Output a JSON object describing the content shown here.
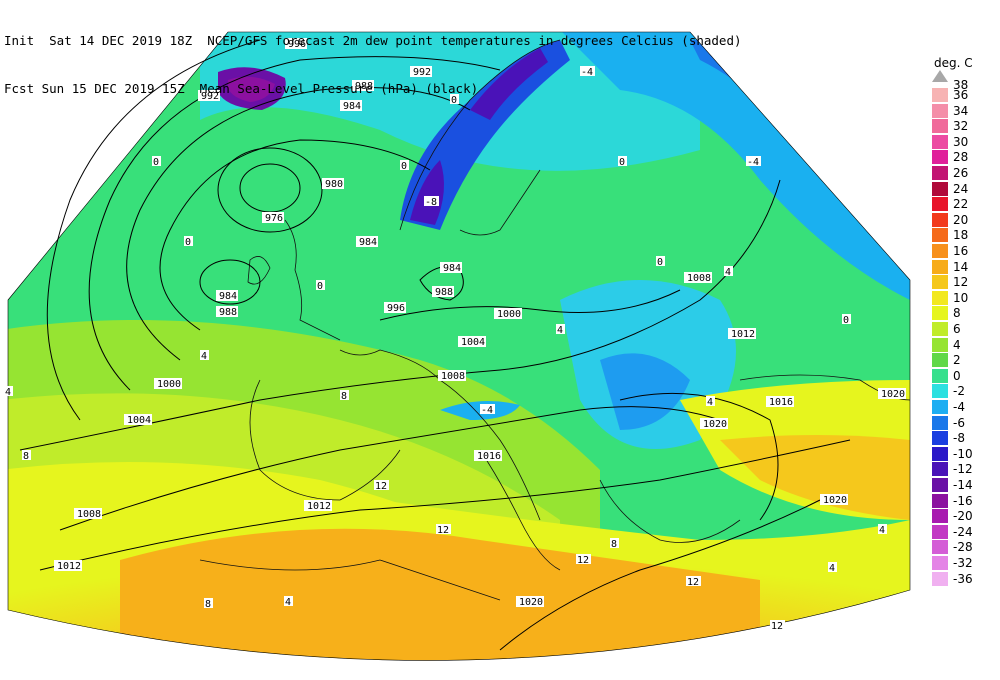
{
  "header": {
    "line1": "Init  Sat 14 DEC 2019 18Z  NCEP/GFS forecast 2m dew point temperatures in degrees Celcius (shaded)",
    "line2": "Fcst Sun 15 DEC 2019 15Z  Mean Sea-Level Pressure (hPa) (black)"
  },
  "legend": {
    "title": "deg. C",
    "top_label": "38",
    "items": [
      {
        "label": "36",
        "color": "#f7b3b3"
      },
      {
        "label": "34",
        "color": "#f48ea8"
      },
      {
        "label": "32",
        "color": "#f06a9a"
      },
      {
        "label": "30",
        "color": "#ec4aa2"
      },
      {
        "label": "28",
        "color": "#e0209a"
      },
      {
        "label": "26",
        "color": "#c21473"
      },
      {
        "label": "24",
        "color": "#b00a3a"
      },
      {
        "label": "22",
        "color": "#e8142a"
      },
      {
        "label": "20",
        "color": "#f23a1c"
      },
      {
        "label": "18",
        "color": "#f56a1a"
      },
      {
        "label": "16",
        "color": "#f7901c"
      },
      {
        "label": "14",
        "color": "#f7ac1a"
      },
      {
        "label": "12",
        "color": "#f5c81c"
      },
      {
        "label": "10",
        "color": "#f2e81e"
      },
      {
        "label": "8",
        "color": "#e6f51e"
      },
      {
        "label": "6",
        "color": "#c0ec2a"
      },
      {
        "label": "4",
        "color": "#96e432"
      },
      {
        "label": "2",
        "color": "#60d848"
      },
      {
        "label": "0",
        "color": "#36e08c"
      },
      {
        "label": "-2",
        "color": "#2ce0e0"
      },
      {
        "label": "-4",
        "color": "#1eaef2"
      },
      {
        "label": "-6",
        "color": "#1a78ea"
      },
      {
        "label": "-8",
        "color": "#1a3ee0"
      },
      {
        "label": "-10",
        "color": "#2a18c8"
      },
      {
        "label": "-12",
        "color": "#4a12b8"
      },
      {
        "label": "-14",
        "color": "#6a10a6"
      },
      {
        "label": "-16",
        "color": "#8c10a0"
      },
      {
        "label": "-20",
        "color": "#a81ab0"
      },
      {
        "label": "-24",
        "color": "#c238c4"
      },
      {
        "label": "-28",
        "color": "#d45ed6"
      },
      {
        "label": "-32",
        "color": "#e484e6"
      },
      {
        "label": "-36",
        "color": "#f0b0f0"
      }
    ]
  },
  "isobars": [
    {
      "label": "996"
    },
    {
      "label": "992"
    },
    {
      "label": "992"
    },
    {
      "label": "988"
    },
    {
      "label": "984"
    },
    {
      "label": "980"
    },
    {
      "label": "976"
    },
    {
      "label": "984"
    },
    {
      "label": "984"
    },
    {
      "label": "988"
    },
    {
      "label": "996"
    },
    {
      "label": "1000"
    },
    {
      "label": "1004"
    },
    {
      "label": "1008"
    },
    {
      "label": "1000"
    },
    {
      "label": "1004"
    },
    {
      "label": "1008"
    },
    {
      "label": "1012"
    },
    {
      "label": "1016"
    },
    {
      "label": "1020"
    },
    {
      "label": "1020"
    },
    {
      "label": "1020"
    },
    {
      "label": "1008"
    },
    {
      "label": "1012"
    },
    {
      "label": "1012"
    },
    {
      "label": "1016"
    },
    {
      "label": "1020"
    },
    {
      "label": "984"
    },
    {
      "label": "988"
    }
  ],
  "dewpoint_labels": [
    {
      "label": "0"
    },
    {
      "label": "0"
    },
    {
      "label": "0"
    },
    {
      "label": "0"
    },
    {
      "label": "0"
    },
    {
      "label": "4"
    },
    {
      "label": "4"
    },
    {
      "label": "4"
    },
    {
      "label": "4"
    },
    {
      "label": "8"
    },
    {
      "label": "8"
    },
    {
      "label": "12"
    },
    {
      "label": "12"
    },
    {
      "label": "12"
    },
    {
      "label": "-4"
    },
    {
      "label": "-4"
    },
    {
      "label": "-4"
    },
    {
      "label": "-8"
    },
    {
      "label": "0"
    },
    {
      "label": "4"
    },
    {
      "label": "4"
    },
    {
      "label": "8"
    },
    {
      "label": "12"
    },
    {
      "label": "12"
    },
    {
      "label": "0"
    },
    {
      "label": "4"
    },
    {
      "label": "8"
    },
    {
      "label": "4"
    },
    {
      "label": "0"
    }
  ]
}
